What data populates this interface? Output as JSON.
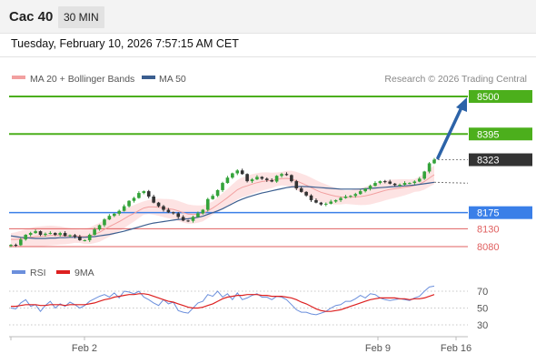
{
  "header": {
    "instrument": "Cac 40",
    "timeframe": "30 MIN",
    "timestamp": "Tuesday, February 10, 2026 7:57:15 AM CET"
  },
  "legend": {
    "bollinger_label": "MA 20 + Bollinger Bands",
    "ma50_label": "MA 50",
    "credit": "Research © 2026 Trading Central",
    "rsi_label": "RSI",
    "rsi_ma_label": "9MA"
  },
  "colors": {
    "resistance": "#4caf1c",
    "pivot": "#3a7fe8",
    "support": "#e06060",
    "last_price": "#333333",
    "arrow": "#2c63a8",
    "candle_up": "#34a33a",
    "candle_down": "#333333",
    "bollinger_band": "#fcdada",
    "ma20": "#f2a0a0",
    "ma50": "#3b5e8f",
    "rsi": "#6b8fdc",
    "rsi_ma": "#dd2020"
  },
  "chart_data": [
    {
      "type": "candlestick",
      "price_levels": [
        {
          "role": "resistance",
          "value": 8500,
          "label": "8500"
        },
        {
          "role": "resistance",
          "value": 8395,
          "label": "8395"
        },
        {
          "role": "last",
          "value": 8323,
          "label": "8323"
        },
        {
          "role": "pivot",
          "value": 8175,
          "label": "8175"
        },
        {
          "role": "support",
          "value": 8130,
          "label": "8130"
        },
        {
          "role": "support",
          "value": 8080,
          "label": "8080"
        }
      ],
      "x_ticks": [
        "Feb 2",
        "Feb 9",
        "Feb 16"
      ],
      "target_arrow": {
        "from": 8323,
        "to": 8500
      },
      "ylim": [
        8060,
        8520
      ],
      "close_path": [
        8085,
        8084,
        8100,
        8113,
        8118,
        8123,
        8113,
        8116,
        8118,
        8113,
        8118,
        8110,
        8112,
        8108,
        8098,
        8098,
        8113,
        8128,
        8140,
        8156,
        8166,
        8172,
        8180,
        8193,
        8208,
        8216,
        8230,
        8235,
        8220,
        8203,
        8193,
        8183,
        8176,
        8173,
        8163,
        8153,
        8152,
        8163,
        8173,
        8183,
        8213,
        8222,
        8238,
        8258,
        8273,
        8285,
        8293,
        8283,
        8263,
        8268,
        8275,
        8270,
        8266,
        8262,
        8278,
        8283,
        8280,
        8263,
        8243,
        8233,
        8223,
        8210,
        8203,
        8198,
        8200,
        8206,
        8210,
        8216,
        8220,
        8222,
        8227,
        8235,
        8242,
        8250,
        8258,
        8263,
        8262,
        8256,
        8252,
        8253,
        8258,
        8258,
        8262,
        8270,
        8290,
        8313,
        8323
      ],
      "ma20": [
        8100,
        8100,
        8102,
        8104,
        8106,
        8108,
        8109,
        8110,
        8111,
        8111,
        8111,
        8110,
        8110,
        8110,
        8109,
        8108,
        8110,
        8115,
        8120,
        8128,
        8136,
        8143,
        8150,
        8158,
        8166,
        8173,
        8181,
        8188,
        8191,
        8191,
        8190,
        8188,
        8186,
        8184,
        8180,
        8175,
        8171,
        8170,
        8171,
        8173,
        8180,
        8188,
        8197,
        8207,
        8217,
        8228,
        8239,
        8246,
        8250,
        8255,
        8259,
        8262,
        8264,
        8265,
        8268,
        8270,
        8271,
        8269,
        8264,
        8258,
        8252,
        8245,
        8238,
        8232,
        8228,
        8224,
        8221,
        8219,
        8218,
        8218,
        8219,
        8220,
        8222,
        8225,
        8229,
        8233,
        8237,
        8240,
        8242,
        8244,
        8246,
        8248,
        8251,
        8255,
        8262,
        8272,
        8281
      ],
      "ma50": [
        8110,
        8108,
        8106,
        8105,
        8104,
        8103,
        8103,
        8103,
        8104,
        8104,
        8105,
        8105,
        8106,
        8106,
        8106,
        8106,
        8107,
        8108,
        8110,
        8112,
        8114,
        8117,
        8120,
        8123,
        8127,
        8131,
        8135,
        8139,
        8143,
        8146,
        8148,
        8150,
        8152,
        8154,
        8156,
        8157,
        8158,
        8160,
        8162,
        8165,
        8170,
        8175,
        8180,
        8186,
        8193,
        8200,
        8207,
        8213,
        8218,
        8222,
        8226,
        8230,
        8233,
        8236,
        8239,
        8242,
        8245,
        8247,
        8248,
        8248,
        8248,
        8247,
        8246,
        8245,
        8244,
        8243,
        8242,
        8241,
        8241,
        8241,
        8241,
        8241,
        8242,
        8243,
        8244,
        8245,
        8246,
        8247,
        8248,
        8249,
        8250,
        8251,
        8252,
        8254,
        8256,
        8258,
        8260
      ]
    },
    {
      "type": "line",
      "title": "RSI",
      "y_ticks": [
        70,
        50,
        30
      ],
      "ylim": [
        20,
        80
      ],
      "series": [
        {
          "name": "RSI",
          "values": [
            50,
            49,
            56,
            60,
            52,
            54,
            46,
            53,
            58,
            50,
            55,
            52,
            57,
            54,
            50,
            53,
            58,
            61,
            64,
            66,
            63,
            68,
            62,
            70,
            69,
            67,
            70,
            63,
            60,
            56,
            53,
            60,
            55,
            57,
            47,
            45,
            44,
            50,
            56,
            58,
            66,
            64,
            70,
            63,
            67,
            60,
            68,
            60,
            62,
            65,
            67,
            63,
            63,
            60,
            64,
            63,
            60,
            54,
            48,
            45,
            45,
            43,
            42,
            44,
            46,
            50,
            53,
            54,
            58,
            58,
            61,
            65,
            62,
            67,
            66,
            62,
            60,
            59,
            60,
            61,
            60,
            59,
            62,
            64,
            70,
            75,
            76
          ]
        },
        {
          "name": "9MA",
          "values": [
            52,
            52,
            53,
            54,
            54,
            54,
            53,
            53,
            54,
            54,
            54,
            53,
            54,
            54,
            54,
            54,
            55,
            56,
            58,
            60,
            61,
            63,
            64,
            65,
            66,
            66,
            67,
            67,
            66,
            64,
            62,
            60,
            58,
            57,
            55,
            53,
            51,
            50,
            50,
            51,
            53,
            55,
            58,
            61,
            63,
            64,
            65,
            65,
            66,
            66,
            66,
            65,
            65,
            64,
            64,
            64,
            63,
            62,
            60,
            57,
            55,
            52,
            49,
            47,
            46,
            46,
            47,
            48,
            50,
            52,
            54,
            56,
            58,
            60,
            61,
            62,
            62,
            62,
            62,
            61,
            61,
            60,
            61,
            61,
            62,
            64,
            66
          ]
        }
      ]
    }
  ]
}
